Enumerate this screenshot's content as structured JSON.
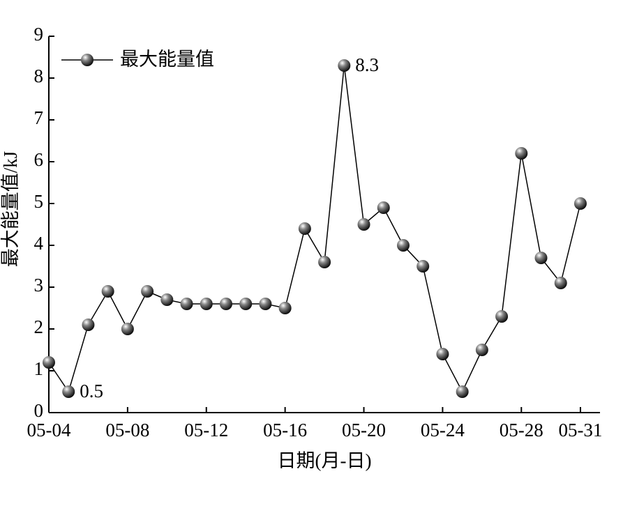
{
  "chart_data": {
    "type": "line",
    "xlabel": "日期(月-日)",
    "ylabel": "最大能量值/kJ",
    "categories": [
      "05-04",
      null,
      null,
      null,
      "05-08",
      null,
      null,
      null,
      "05-12",
      null,
      null,
      null,
      "05-16",
      null,
      null,
      null,
      "05-20",
      null,
      null,
      null,
      "05-24",
      null,
      null,
      null,
      "05-28",
      null,
      null,
      "05-31"
    ],
    "series": [
      {
        "name": "最大能量值",
        "color": "#000000",
        "values": [
          1.2,
          0.5,
          2.1,
          2.9,
          2.0,
          2.9,
          2.7,
          2.6,
          2.6,
          2.6,
          2.6,
          2.6,
          2.5,
          4.4,
          3.6,
          8.3,
          4.5,
          4.9,
          4.0,
          3.5,
          1.4,
          0.5,
          1.5,
          2.3,
          6.2,
          3.7,
          3.1,
          5.0
        ]
      }
    ],
    "annotations": [
      "0.5",
      "8.3"
    ],
    "ylim": [
      0,
      9
    ],
    "yticks": [
      0,
      1,
      2,
      3,
      4,
      5,
      6,
      7,
      8,
      9
    ],
    "legend": "upper left"
  }
}
